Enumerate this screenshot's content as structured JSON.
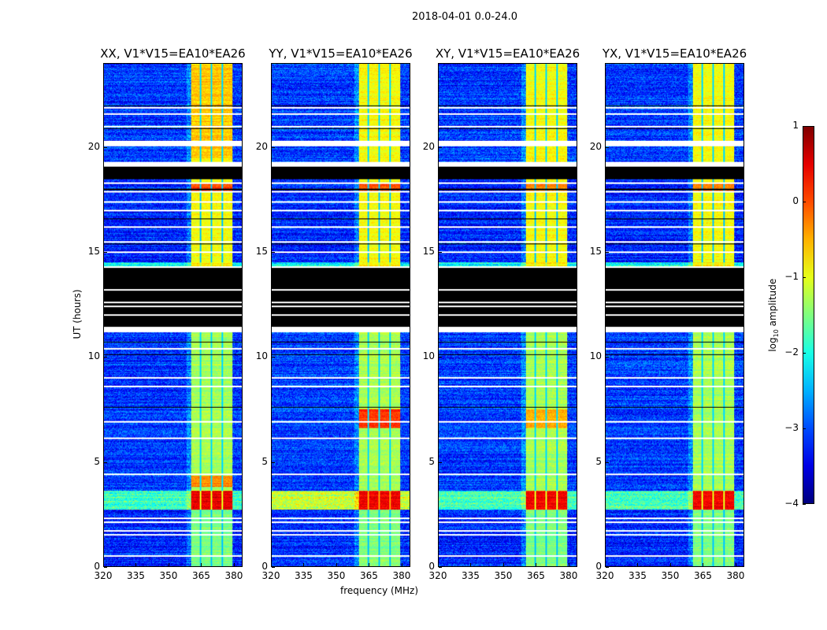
{
  "figure": {
    "suptitle": "2018-04-01 0.0-24.0",
    "xlabel": "frequency (MHz)",
    "ylabel": "UT (hours)"
  },
  "chart_data": {
    "type": "heatmap",
    "title": "2018-04-01 0.0-24.0",
    "xlabel": "frequency (MHz)",
    "ylabel": "UT (hours)",
    "xlim": [
      320,
      384
    ],
    "ylim": [
      0,
      24
    ],
    "xticks": [
      320,
      335,
      350,
      365,
      380
    ],
    "yticks": [
      0,
      5,
      10,
      15,
      20
    ],
    "colormap": "jet",
    "colorbar": {
      "label": "log10 amplitude",
      "label_main": "log",
      "label_sub": "10",
      "label_rest": " amplitude",
      "range": [
        -4,
        1
      ],
      "ticks": [
        "1",
        "0",
        "−1",
        "−2",
        "−3",
        "−4"
      ],
      "tick_values": [
        1,
        0,
        -1,
        -2,
        -3,
        -4
      ]
    },
    "rfi_band_mhz": [
      360.5,
      379.5
    ],
    "subband_edges_mhz": [
      364.8,
      369.8,
      374.9
    ],
    "segments": [
      {
        "t": [
          0,
          2.7
        ],
        "bg": -3.2,
        "band": -1.5
      },
      {
        "t": [
          2.7,
          3.6
        ],
        "bg": -1.8,
        "band": 0.3
      },
      {
        "t": [
          3.6,
          11.3
        ],
        "bg": -3.1,
        "band": -1.3
      },
      {
        "t": [
          11.3,
          14.3
        ],
        "flag": "black"
      },
      {
        "t": [
          14.3,
          14.5
        ],
        "bg": -2.1,
        "band": -0.8
      },
      {
        "t": [
          14.5,
          18.5
        ],
        "bg": -3.2,
        "band": -0.9
      },
      {
        "t": [
          18.5,
          19.2
        ],
        "flag": "black"
      },
      {
        "t": [
          19.2,
          24
        ],
        "bg": -3.1,
        "band": -0.9
      }
    ],
    "white_flag_hours": [
      0.5,
      1.5,
      1.7,
      2.1,
      2.3,
      4.4,
      6.1,
      6.9,
      8.6,
      9.0,
      10.4,
      11.3,
      12.0,
      12.4,
      12.6,
      13.2,
      14.3,
      15.0,
      15.5,
      16.2,
      17.0,
      17.4,
      17.9,
      18.3,
      19.2,
      20.2,
      21.0,
      21.6,
      21.9
    ],
    "black_flag_hours": [
      7.6,
      10.1,
      10.7,
      15.4,
      16.6,
      18.0,
      20.9,
      22.0
    ],
    "series": [
      {
        "name": "XX, V1*V15=EA10*EA26",
        "overrides": [
          {
            "t": [
              2.7,
              3.6
            ],
            "band": 0.5
          },
          {
            "t": [
              3.8,
              4.3
            ],
            "band": -0.3
          },
          {
            "t": [
              17.9,
              18.3
            ],
            "band": 0.0
          },
          {
            "t": [
              19.5,
              24
            ],
            "band": -0.6
          }
        ]
      },
      {
        "name": "YY, V1*V15=EA10*EA26",
        "overrides": [
          {
            "t": [
              2.7,
              3.6
            ],
            "band": 0.4,
            "bg": -1.2
          },
          {
            "t": [
              6.6,
              7.5
            ],
            "band": 0.1
          },
          {
            "t": [
              17.9,
              18.3
            ],
            "band": -0.1
          }
        ]
      },
      {
        "name": "XY, V1*V15=EA10*EA26",
        "overrides": [
          {
            "t": [
              2.7,
              3.6
            ],
            "band": 0.4
          },
          {
            "t": [
              6.6,
              7.5
            ],
            "band": -0.5
          },
          {
            "t": [
              17.9,
              18.3
            ],
            "band": -0.2
          }
        ]
      },
      {
        "name": "YX, V1*V15=EA10*EA26",
        "overrides": [
          {
            "t": [
              2.7,
              3.6
            ],
            "band": 0.4
          },
          {
            "t": [
              17.9,
              18.3
            ],
            "band": -0.2
          }
        ]
      }
    ]
  }
}
